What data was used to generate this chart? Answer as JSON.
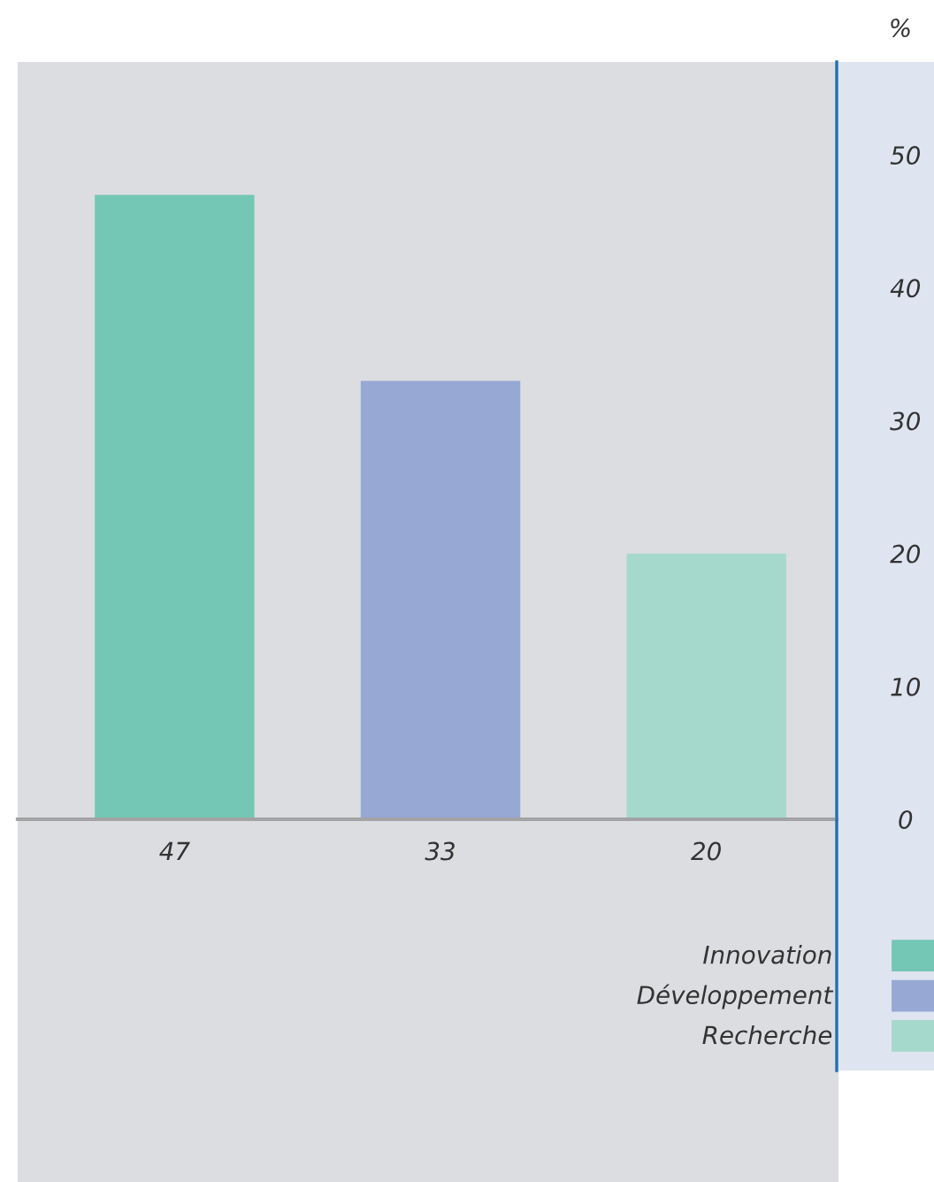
{
  "chart_data": {
    "type": "bar",
    "ylabel": "%",
    "categories": [
      null,
      null,
      null
    ],
    "series": [
      {
        "name": "Innovation",
        "color": "#74c7b4",
        "values": [
          47,
          null,
          null
        ]
      },
      {
        "name": "Développement",
        "color": "#97a8d5",
        "values": [
          null,
          33,
          null
        ]
      },
      {
        "name": "Recherche",
        "color": "#a5d9cb",
        "values": [
          null,
          null,
          20
        ]
      }
    ],
    "ylim": [
      0,
      57
    ],
    "yticks": [
      0,
      10,
      20,
      30,
      40,
      50
    ],
    "grid": false,
    "legend": "bottom right",
    "data_labels": true
  }
}
